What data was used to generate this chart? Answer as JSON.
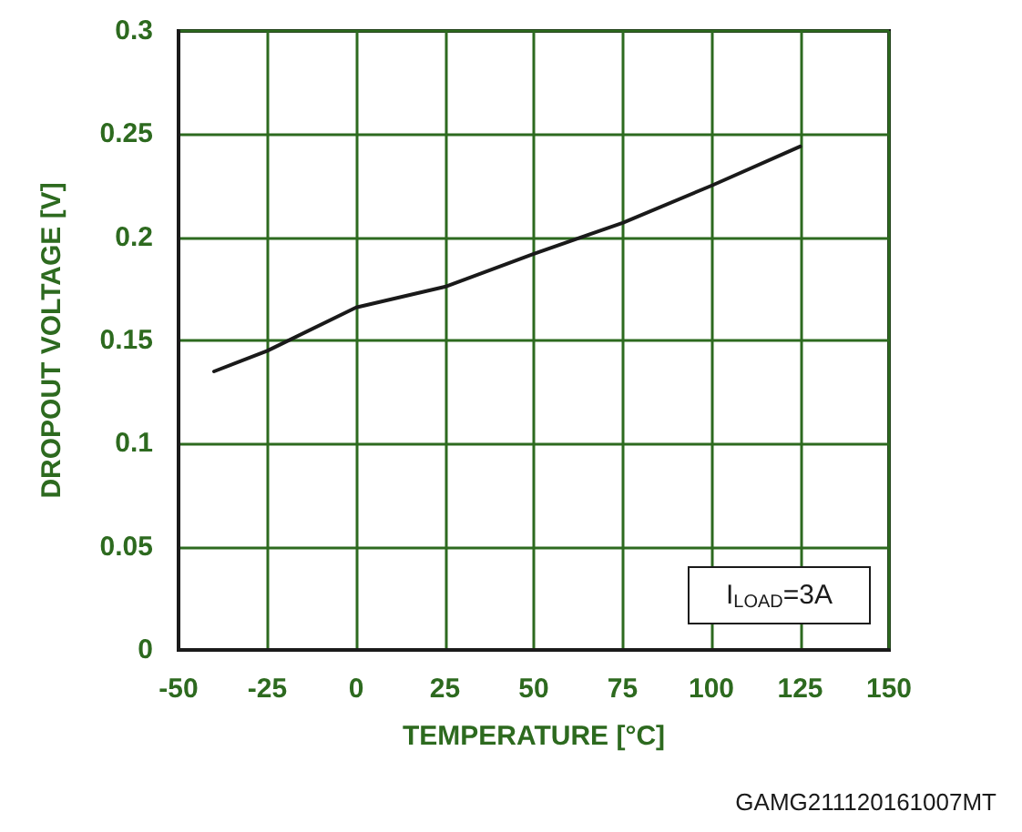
{
  "chart_data": {
    "type": "line",
    "xlabel": "TEMPERATURE [°C]",
    "ylabel": "DROPOUT VOLTAGE [V]",
    "x": [
      -40,
      -25,
      0,
      25,
      50,
      75,
      100,
      125
    ],
    "series": [
      {
        "color": "#1a1a1a",
        "values": [
          0.135,
          0.145,
          0.166,
          0.176,
          0.192,
          0.207,
          0.225,
          0.244
        ]
      }
    ],
    "xlim": [
      -50,
      150
    ],
    "xticks": [
      -50,
      -25,
      0,
      25,
      50,
      75,
      100,
      125,
      150
    ],
    "ylim": [
      0,
      0.3
    ],
    "yticks": [
      0,
      0.05,
      0.1,
      0.15,
      0.2,
      0.25,
      0.3
    ],
    "grid": true,
    "marker": "none",
    "line_style": "solid",
    "annotations": [
      "I$_{LOAD}$=3A",
      "GAMG211120161007MT"
    ]
  }
}
